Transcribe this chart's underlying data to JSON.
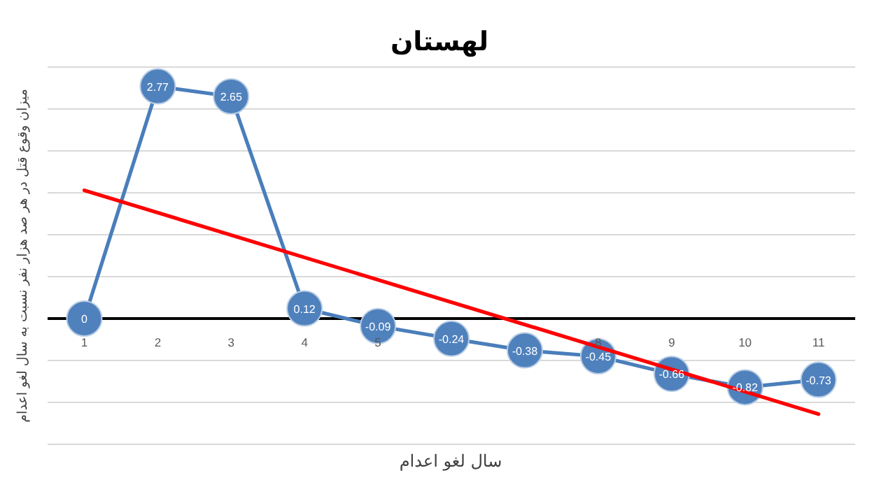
{
  "chart_data": {
    "type": "line",
    "title": "لهستان",
    "xlabel": "سال لغو اعدام",
    "ylabel": "میزان وقوع قتل در هر صد هزار نفر نسبت به سال لغو اعدام",
    "x": [
      1,
      2,
      3,
      4,
      5,
      6,
      7,
      8,
      9,
      10,
      11
    ],
    "series": [
      {
        "color": "#4a7ebb",
        "values": [
          0,
          2.77,
          2.65,
          0.12,
          -0.09,
          -0.24,
          -0.38,
          -0.45,
          -0.66,
          -0.82,
          -0.73
        ],
        "value_labels": [
          "0",
          "2.77",
          "2.65",
          "0.12",
          "-0.09",
          "-0.24",
          "-0.38",
          "-0.45",
          "-0.66",
          "-0.82",
          "-0.73"
        ],
        "marker": "circle"
      },
      {
        "color": "#ff0000",
        "x": [
          1,
          11
        ],
        "values": [
          1.53,
          -1.14
        ]
      }
    ],
    "xlim": [
      0.5,
      11.5
    ],
    "xticks": [
      1,
      2,
      3,
      4,
      5,
      8,
      9,
      10,
      11
    ],
    "ylim": [
      -1.5,
      3
    ],
    "yticks": [
      {
        "value": -1.5,
        "label": null
      },
      {
        "value": -1,
        "label": null
      },
      {
        "value": -0.5,
        "label": null
      },
      {
        "value": 0,
        "label": null
      },
      {
        "value": 0.5,
        "label": null
      },
      {
        "value": 1,
        "label": null
      },
      {
        "value": 1.5,
        "label": null
      },
      {
        "value": 2,
        "label": null
      },
      {
        "value": 2.5,
        "label": null
      },
      {
        "value": 3,
        "label": null
      }
    ],
    "grid": "y",
    "tick_labels": "x"
  }
}
